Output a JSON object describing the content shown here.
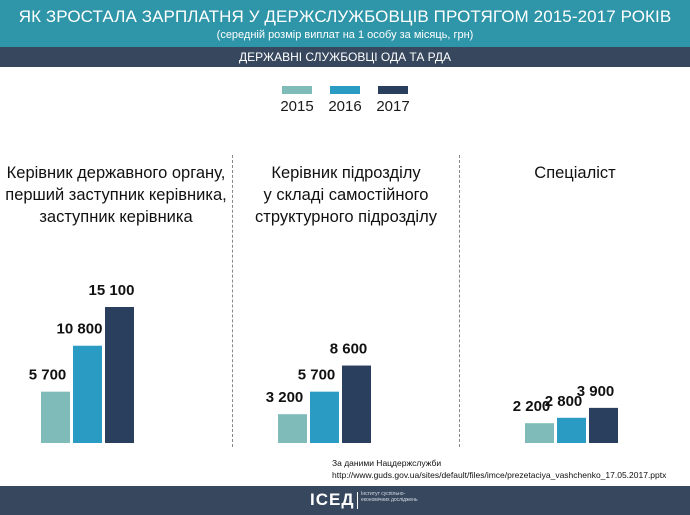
{
  "header": {
    "title": "ЯК ЗРОСТАЛА ЗАРПЛАТНЯ У ДЕРЖСЛУЖБОВЦІВ ПРОТЯГОМ 2015-2017 РОКІВ",
    "subtitle": "(середній розмір виплат на 1 особу за місяць, грн)",
    "section": "ДЕРЖАВНІ СЛУЖБОВЦІ ОДА ТА РДА"
  },
  "legend": [
    {
      "label": "2015",
      "color": "#7fbcb9"
    },
    {
      "label": "2016",
      "color": "#2a9bc2"
    },
    {
      "label": "2017",
      "color": "#2a3f5e"
    }
  ],
  "groups": [
    {
      "title_lines": [
        "Керівник державного органу,",
        "перший заступник керівника,",
        "заступник керівника"
      ]
    },
    {
      "title_lines": [
        "Керівник підрозділу",
        "у складі самостійного",
        "структурного підрозділу"
      ]
    },
    {
      "title_lines": [
        "Спеціаліст"
      ]
    }
  ],
  "chart_data": {
    "type": "bar",
    "series_names": [
      "2015",
      "2016",
      "2017"
    ],
    "categories": [
      "Керівник державного органу, перший заступник керівника, заступник керівника",
      "Керівник підрозділу у складі самостійного структурного підрозділу",
      "Спеціаліст"
    ],
    "series": [
      {
        "name": "2015",
        "values": [
          5700,
          3200,
          2200
        ],
        "labels": [
          "5 700",
          "3 200",
          "2 200"
        ]
      },
      {
        "name": "2016",
        "values": [
          10800,
          5700,
          2800
        ],
        "labels": [
          "10 800",
          "5 700",
          "2 800"
        ]
      },
      {
        "name": "2017",
        "values": [
          15100,
          8600,
          3900
        ],
        "labels": [
          "15 100",
          "8 600",
          "3 900"
        ]
      }
    ]
  },
  "source": {
    "line1": "За даними Нацдержслужби",
    "line2": "http://www.guds.gov.ua/sites/default/files/imce/prezetaciya_vashchenko_17.05.2017.pptx"
  },
  "footer": {
    "logo": "ІСЕД",
    "logo_sub": "Інститут суспільно-економічних досліджень"
  }
}
